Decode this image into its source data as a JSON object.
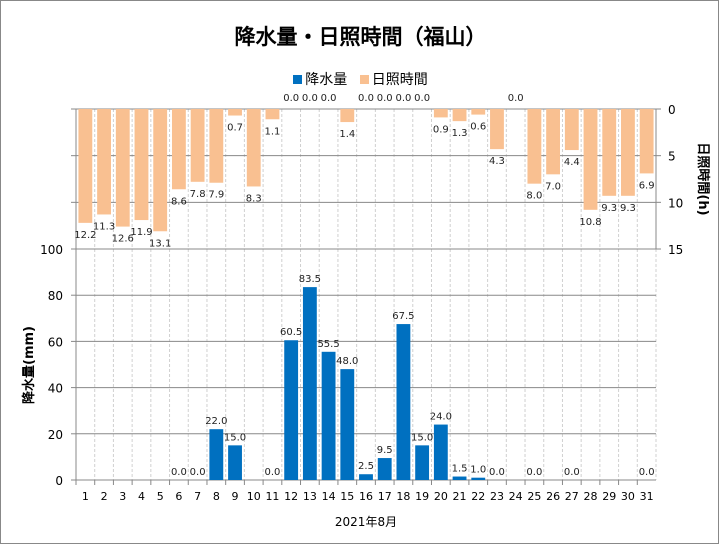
{
  "chart_data": {
    "type": "bar",
    "title": "降水量・日照時間（福山）",
    "xlabel": "2021年8月",
    "ylabel_left": "降水量(mm)",
    "ylabel_right": "日照時間(h)",
    "left_ylim": [
      0,
      100
    ],
    "left_ticks": [
      "0",
      "20",
      "40",
      "60",
      "80",
      "100"
    ],
    "right_ylim": [
      0,
      15
    ],
    "right_ticks": [
      "0",
      "5",
      "10",
      "15"
    ],
    "right_axis_reversed": true,
    "legend": [
      "降水量",
      "日照時間"
    ],
    "legend_position": "top",
    "categories": [
      "1",
      "2",
      "3",
      "4",
      "5",
      "6",
      "7",
      "8",
      "9",
      "10",
      "11",
      "12",
      "13",
      "14",
      "15",
      "16",
      "17",
      "18",
      "19",
      "20",
      "21",
      "22",
      "23",
      "24",
      "25",
      "26",
      "27",
      "28",
      "29",
      "30",
      "31"
    ],
    "series": [
      {
        "name": "降水量",
        "color": "#0070C0",
        "values": [
          null,
          null,
          null,
          null,
          null,
          0.0,
          0.0,
          22.0,
          15.0,
          null,
          0.0,
          60.5,
          83.5,
          55.5,
          48.0,
          2.5,
          9.5,
          67.5,
          15.0,
          24.0,
          1.5,
          1.0,
          0.0,
          null,
          0.0,
          null,
          0.0,
          null,
          null,
          null,
          0.0
        ]
      },
      {
        "name": "日照時間",
        "color": "#F9C091",
        "values": [
          12.2,
          11.3,
          12.6,
          11.9,
          13.1,
          8.6,
          7.8,
          7.9,
          0.7,
          8.3,
          1.1,
          0.0,
          0.0,
          0.0,
          1.4,
          0.0,
          0.0,
          0.0,
          0.0,
          0.9,
          1.3,
          0.6,
          4.3,
          0.0,
          8.0,
          7.0,
          4.4,
          10.8,
          9.3,
          9.3,
          6.9
        ]
      }
    ]
  }
}
